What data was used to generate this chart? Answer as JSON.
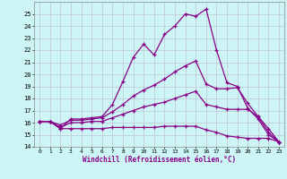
{
  "xlabel": "Windchill (Refroidissement éolien,°C)",
  "x_values": [
    0,
    1,
    2,
    3,
    4,
    5,
    6,
    7,
    8,
    9,
    10,
    11,
    12,
    13,
    14,
    15,
    16,
    17,
    18,
    19,
    20,
    21,
    22,
    23
  ],
  "lines": [
    [
      16.1,
      16.1,
      15.5,
      16.3,
      16.3,
      16.4,
      16.5,
      17.5,
      19.4,
      21.4,
      22.5,
      21.6,
      23.3,
      24.0,
      25.0,
      24.8,
      25.4,
      22.0,
      19.3,
      19.0,
      17.2,
      16.3,
      15.0,
      14.4
    ],
    [
      16.1,
      16.1,
      15.8,
      16.2,
      16.2,
      16.3,
      16.4,
      16.9,
      17.5,
      18.2,
      18.7,
      19.1,
      19.6,
      20.2,
      20.7,
      21.1,
      19.2,
      18.8,
      18.8,
      18.9,
      17.6,
      16.5,
      15.2,
      14.4
    ],
    [
      16.1,
      16.1,
      15.6,
      16.0,
      16.0,
      16.1,
      16.1,
      16.4,
      16.7,
      17.0,
      17.3,
      17.5,
      17.7,
      18.0,
      18.3,
      18.6,
      17.5,
      17.3,
      17.1,
      17.1,
      17.1,
      16.5,
      15.5,
      14.4
    ],
    [
      16.1,
      16.1,
      15.5,
      15.5,
      15.5,
      15.5,
      15.5,
      15.6,
      15.6,
      15.6,
      15.6,
      15.6,
      15.7,
      15.7,
      15.7,
      15.7,
      15.4,
      15.2,
      14.9,
      14.8,
      14.7,
      14.7,
      14.7,
      14.4
    ]
  ],
  "line_color": "#880088",
  "bg_color": "#cef5f5",
  "grid_color": "#bbbbcc",
  "ylim": [
    14,
    26
  ],
  "yticks": [
    14,
    15,
    16,
    17,
    18,
    19,
    20,
    21,
    22,
    23,
    24,
    25
  ],
  "xticks": [
    0,
    1,
    2,
    3,
    4,
    5,
    6,
    7,
    8,
    9,
    10,
    11,
    12,
    13,
    14,
    15,
    16,
    17,
    18,
    19,
    20,
    21,
    22,
    23
  ]
}
